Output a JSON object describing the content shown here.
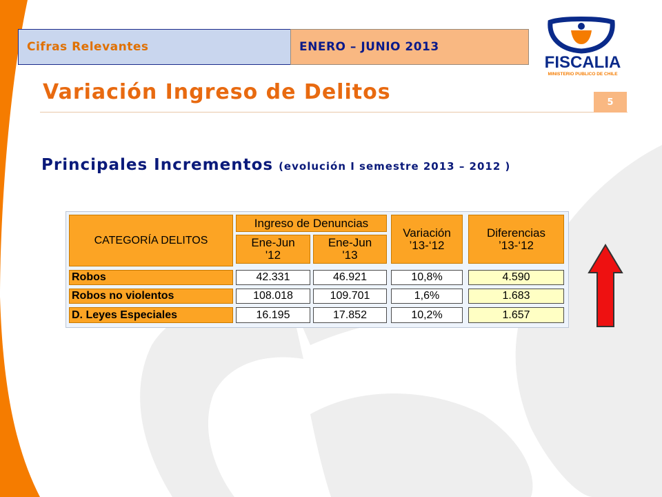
{
  "header": {
    "section_label": "Cifras Relevantes",
    "period_label": "ENERO – JUNIO 2013"
  },
  "logo": {
    "name": "FISCALIA",
    "tagline": "MINISTERIO PUBLICO DE CHILE"
  },
  "page": {
    "title": "Variación Ingreso de Delitos",
    "number": "5"
  },
  "subtitle": {
    "main": "Principales Incrementos",
    "paren": "(evolución I semestre 2013 – 2012 )"
  },
  "table": {
    "headers": {
      "category": "CATEGORÍA DELITOS",
      "group": "Ingreso de Denuncias",
      "col_2012": [
        "Ene-Jun",
        "'12"
      ],
      "col_2013": [
        "Ene-Jun",
        "'13"
      ],
      "variation": [
        "Variación",
        "’13-‘12"
      ],
      "difference": [
        "Diferencias",
        "’13-‘12"
      ]
    },
    "rows": [
      {
        "category": "Robos",
        "v2012": "42.331",
        "v2013": "46.921",
        "variation": "10,8%",
        "difference": "4.590"
      },
      {
        "category": "Robos no violentos",
        "v2012": "108.018",
        "v2013": "109.701",
        "variation": "1,6%",
        "difference": "1.683"
      },
      {
        "category": "D. Leyes Especiales",
        "v2012": "16.195",
        "v2013": "17.852",
        "variation": "10,2%",
        "difference": "1.657"
      }
    ]
  },
  "indicator": {
    "icon": "up-arrow-icon",
    "color": "#ee1111"
  },
  "colors": {
    "orange_accent": "#e86a10",
    "navy": "#0a1a7a",
    "table_orange": "#fca424",
    "highlight_yellow": "#ffffc4"
  }
}
